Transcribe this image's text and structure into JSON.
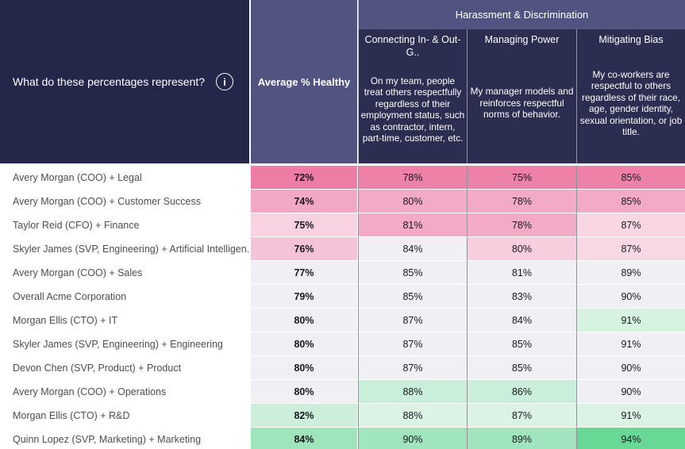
{
  "header": {
    "question": "What do these percentages represent?",
    "info_icon_glyph": "i",
    "avg_column_label": "Average % Healthy",
    "group_label": "Harassment & Discrimination",
    "metric_columns": [
      {
        "title": "Connecting In- & Out-G..",
        "description": "On my team, people treat others respectfully regardless of their employment status, such as contractor, intern, part-time, customer, etc."
      },
      {
        "title": "Managing Power",
        "description": "My manager models and reinforces respectful norms of behavior."
      },
      {
        "title": "Mitigating Bias",
        "description": "My co-workers are respectful to others regardless of their race, age, gender identity, sexual orientation, or job title."
      }
    ]
  },
  "colors": {
    "panel_navy": "#24264a",
    "subheader_navy": "#2b2d51",
    "header_purple": "#515480",
    "neutral_cell": "#f0f0f4",
    "grid_line": "#91919b",
    "pink_dark": "#ed7da5",
    "pink_medium": "#f3aac6",
    "pink_light": "#f8d7e2",
    "green_light": "#d7f2e0",
    "green_medium": "#a0e5bd",
    "green_dark": "#69d796"
  },
  "rows": [
    {
      "label": "Avery Morgan (COO) + Legal",
      "avg": {
        "value": "72%",
        "color": "#ed7da5"
      },
      "cells": [
        {
          "value": "78%",
          "color": "#ee81a8"
        },
        {
          "value": "75%",
          "color": "#ee81a8"
        },
        {
          "value": "85%",
          "color": "#ee81a8"
        }
      ]
    },
    {
      "label": "Avery Morgan (COO) + Customer Success",
      "avg": {
        "value": "74%",
        "color": "#f2a8c5"
      },
      "cells": [
        {
          "value": "80%",
          "color": "#f3aac6"
        },
        {
          "value": "78%",
          "color": "#f3aac6"
        },
        {
          "value": "85%",
          "color": "#f3aac6"
        }
      ]
    },
    {
      "label": "Taylor Reid (CFO) + Finance",
      "avg": {
        "value": "75%",
        "color": "#f8d2e0"
      },
      "cells": [
        {
          "value": "81%",
          "color": "#f3aac6"
        },
        {
          "value": "78%",
          "color": "#f3aac6"
        },
        {
          "value": "87%",
          "color": "#f8d7e2"
        }
      ]
    },
    {
      "label": "Skyler James (SVP, Engineering) + Artificial Intelligen..",
      "avg": {
        "value": "76%",
        "color": "#f5c3d7"
      },
      "cells": [
        {
          "value": "84%",
          "color": "#f0f0f4"
        },
        {
          "value": "80%",
          "color": "#f7cedd"
        },
        {
          "value": "87%",
          "color": "#f8d8e3"
        }
      ]
    },
    {
      "label": "Avery Morgan (COO) + Sales",
      "avg": {
        "value": "77%",
        "color": "#f0f0f4"
      },
      "cells": [
        {
          "value": "85%",
          "color": "#f0f0f4"
        },
        {
          "value": "81%",
          "color": "#f0f0f4"
        },
        {
          "value": "89%",
          "color": "#f0f0f4"
        }
      ]
    },
    {
      "label": "Overall Acme Corporation",
      "avg": {
        "value": "79%",
        "color": "#f0f0f4"
      },
      "cells": [
        {
          "value": "85%",
          "color": "#f0f0f4"
        },
        {
          "value": "83%",
          "color": "#f0f0f4"
        },
        {
          "value": "90%",
          "color": "#f0f0f4"
        }
      ]
    },
    {
      "label": "Morgan Ellis (CTO) + IT",
      "avg": {
        "value": "80%",
        "color": "#f0f0f4"
      },
      "cells": [
        {
          "value": "87%",
          "color": "#f0f0f4"
        },
        {
          "value": "84%",
          "color": "#f0f0f4"
        },
        {
          "value": "91%",
          "color": "#d7f2e0"
        }
      ]
    },
    {
      "label": "Skyler James (SVP, Engineering) + Engineering",
      "avg": {
        "value": "80%",
        "color": "#f0f0f4"
      },
      "cells": [
        {
          "value": "87%",
          "color": "#f0f0f4"
        },
        {
          "value": "85%",
          "color": "#f0f0f4"
        },
        {
          "value": "91%",
          "color": "#f0f0f4"
        }
      ]
    },
    {
      "label": "Devon Chen (SVP, Product) + Product",
      "avg": {
        "value": "80%",
        "color": "#f0f0f4"
      },
      "cells": [
        {
          "value": "87%",
          "color": "#f0f0f4"
        },
        {
          "value": "85%",
          "color": "#f0f0f4"
        },
        {
          "value": "90%",
          "color": "#f0f0f4"
        }
      ]
    },
    {
      "label": "Avery Morgan (COO) + Operations",
      "avg": {
        "value": "80%",
        "color": "#f0f0f4"
      },
      "cells": [
        {
          "value": "88%",
          "color": "#c9eed9"
        },
        {
          "value": "86%",
          "color": "#c9eed9"
        },
        {
          "value": "90%",
          "color": "#f0f0f4"
        }
      ]
    },
    {
      "label": "Morgan Ellis (CTO) + R&D",
      "avg": {
        "value": "82%",
        "color": "#cceeda"
      },
      "cells": [
        {
          "value": "88%",
          "color": "#daf3e4"
        },
        {
          "value": "87%",
          "color": "#daf3e4"
        },
        {
          "value": "91%",
          "color": "#daf3e4"
        }
      ]
    },
    {
      "label": "Quinn Lopez (SVP, Marketing) + Marketing",
      "avg": {
        "value": "84%",
        "color": "#9fe5bc"
      },
      "cells": [
        {
          "value": "90%",
          "color": "#a0e5bd"
        },
        {
          "value": "89%",
          "color": "#a0e5bd"
        },
        {
          "value": "94%",
          "color": "#69d796"
        }
      ]
    }
  ],
  "chart_data": {
    "type": "heatmap",
    "title": "Harassment & Discrimination",
    "question": "What do these percentages represent?",
    "columns": [
      "Average % Healthy",
      "Connecting In- & Out-G..",
      "Managing Power",
      "Mitigating Bias"
    ],
    "rows": [
      "Avery Morgan (COO) + Legal",
      "Avery Morgan (COO) + Customer Success",
      "Taylor Reid (CFO) + Finance",
      "Skyler James (SVP, Engineering) + Artificial Intelligen..",
      "Avery Morgan (COO) + Sales",
      "Overall Acme Corporation",
      "Morgan Ellis (CTO) + IT",
      "Skyler James (SVP, Engineering) + Engineering",
      "Devon Chen (SVP, Product) + Product",
      "Avery Morgan (COO) + Operations",
      "Morgan Ellis (CTO) + R&D",
      "Quinn Lopez (SVP, Marketing) + Marketing"
    ],
    "values_pct": [
      [
        72,
        78,
        75,
        85
      ],
      [
        74,
        80,
        78,
        85
      ],
      [
        75,
        81,
        78,
        87
      ],
      [
        76,
        84,
        80,
        87
      ],
      [
        77,
        85,
        81,
        89
      ],
      [
        79,
        85,
        83,
        90
      ],
      [
        80,
        87,
        84,
        91
      ],
      [
        80,
        87,
        85,
        91
      ],
      [
        80,
        87,
        85,
        90
      ],
      [
        80,
        88,
        86,
        90
      ],
      [
        82,
        88,
        87,
        91
      ],
      [
        84,
        90,
        89,
        94
      ]
    ],
    "color_encoding": "pink = lower % healthy, white = middle, green = higher % healthy"
  }
}
